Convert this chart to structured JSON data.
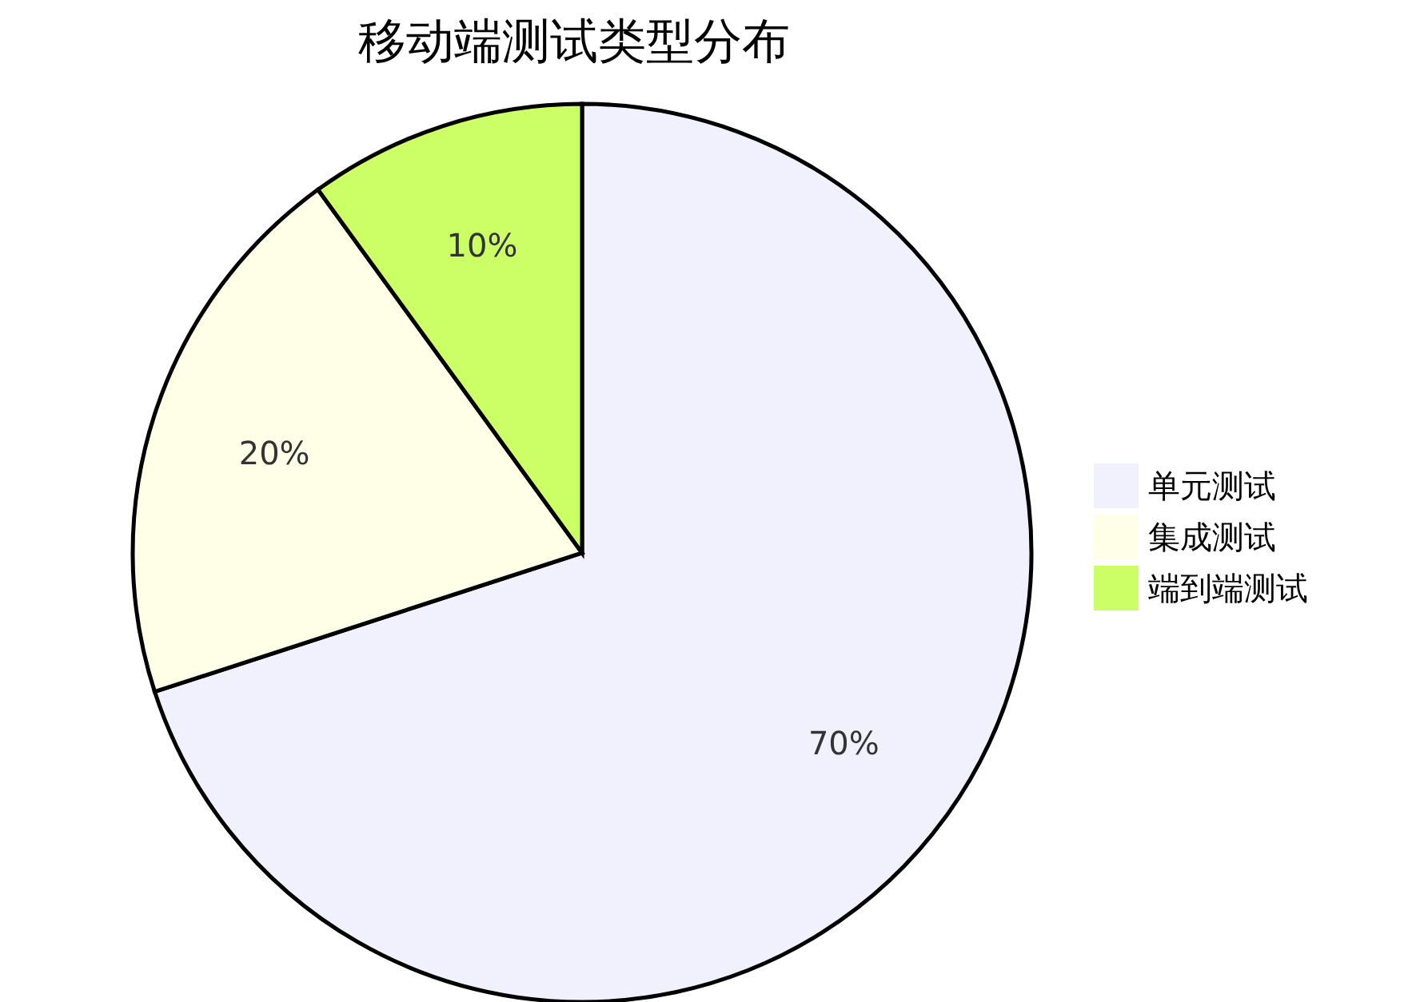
{
  "chart_data": {
    "type": "pie",
    "title": "移动端测试类型分布",
    "categories": [
      "单元测试",
      "集成测试",
      "端到端测试"
    ],
    "values": [
      70,
      20,
      10
    ],
    "colors": [
      "#f1f1fd",
      "#ffffe8",
      "#ccff66"
    ],
    "legend": "right",
    "value_labels": [
      "70%",
      "20%",
      "10%"
    ]
  }
}
